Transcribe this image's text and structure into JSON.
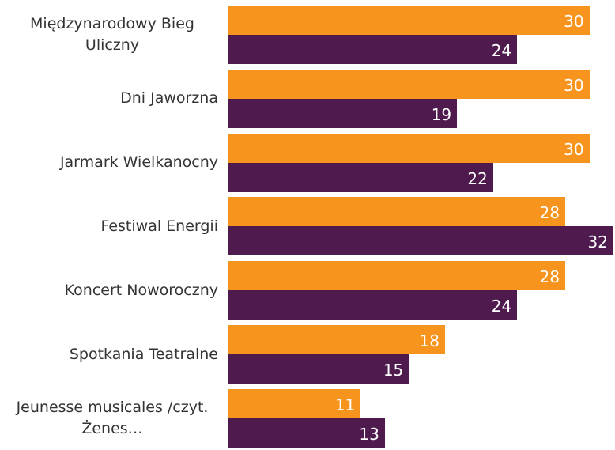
{
  "chart_data": {
    "type": "bar",
    "orientation": "horizontal",
    "categories": [
      "Międzynarodowy Bieg Uliczny",
      "Dni Jaworzna",
      "Jarmark Wielkanocny",
      "Festiwal Energii",
      "Koncert Noworoczny",
      "Spotkania Teatralne",
      "Jeunesse musicales /czyt. Żenes…"
    ],
    "series": [
      {
        "color": "#f7941d",
        "values": [
          30,
          30,
          30,
          28,
          28,
          18,
          11
        ]
      },
      {
        "color": "#4f1b4f",
        "values": [
          24,
          19,
          22,
          32,
          24,
          15,
          13
        ]
      }
    ],
    "xlim": [
      0,
      32
    ]
  }
}
